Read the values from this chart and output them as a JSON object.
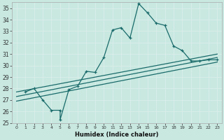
{
  "xlabel": "Humidex (Indice chaleur)",
  "bg_color": "#c8e8e0",
  "grid_color": "#d8ece8",
  "line_color": "#1a6b6b",
  "xlim": [
    -0.5,
    23.5
  ],
  "ylim": [
    25,
    35.5
  ],
  "xticks": [
    0,
    1,
    2,
    3,
    4,
    5,
    6,
    7,
    8,
    9,
    10,
    11,
    12,
    13,
    14,
    15,
    16,
    17,
    18,
    19,
    20,
    21,
    22,
    23
  ],
  "yticks": [
    25,
    26,
    27,
    28,
    29,
    30,
    31,
    32,
    33,
    34,
    35
  ],
  "zigzag_x": [
    1,
    2,
    3,
    4,
    5,
    5,
    6,
    7,
    8,
    9,
    10,
    11,
    12,
    13,
    14,
    15,
    16,
    17,
    18,
    19,
    20,
    21,
    22,
    23
  ],
  "zigzag_y": [
    27.7,
    28.0,
    27.0,
    26.1,
    26.1,
    25.3,
    27.9,
    28.2,
    29.5,
    29.4,
    30.7,
    33.1,
    33.3,
    32.4,
    35.4,
    34.6,
    33.7,
    33.5,
    31.7,
    31.3,
    30.4,
    30.4,
    30.5,
    30.5
  ],
  "line2_x": [
    0,
    23
  ],
  "line2_y": [
    27.7,
    31.0
  ],
  "line3_x": [
    0,
    23
  ],
  "line3_y": [
    27.3,
    30.7
  ],
  "line4_x": [
    0,
    23
  ],
  "line4_y": [
    26.9,
    30.3
  ]
}
